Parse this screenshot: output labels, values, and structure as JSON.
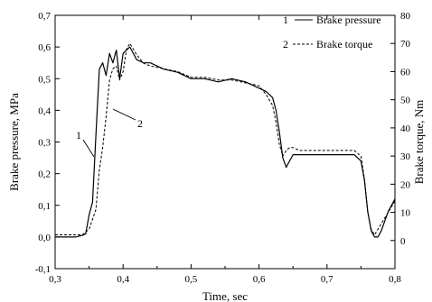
{
  "chart_data": {
    "type": "line",
    "title": "",
    "xlabel": "Time, sec",
    "ylabel": "Brake pressure, MPa",
    "y2label": "Brake torque, Nm",
    "xlim": [
      0.3,
      0.8
    ],
    "ylim": [
      -0.1,
      0.7
    ],
    "y2lim": [
      -10,
      80
    ],
    "x_ticks": [
      0.3,
      0.4,
      0.5,
      0.6,
      0.7,
      0.8
    ],
    "x_tick_labels": [
      "0,3",
      "0,4",
      "0,5",
      "0,6",
      "0,7",
      "0,8"
    ],
    "y_ticks": [
      -0.1,
      0.0,
      0.1,
      0.2,
      0.3,
      0.4,
      0.5,
      0.6,
      0.7
    ],
    "y_tick_labels": [
      "-0,1",
      "0,0",
      "0,1",
      "0,2",
      "0,3",
      "0,4",
      "0,5",
      "0,6",
      "0,7"
    ],
    "y2_ticks": [
      0,
      10,
      20,
      30,
      40,
      50,
      60,
      70,
      80
    ],
    "y2_tick_labels": [
      "0",
      "10",
      "20",
      "30",
      "40",
      "50",
      "60",
      "70",
      "80"
    ],
    "grid": false,
    "legend_position": "top-right",
    "legend": [
      {
        "number": "1",
        "label": "Brake pressure",
        "style": "solid"
      },
      {
        "number": "2",
        "label": "Brake torque",
        "style": "dashed"
      }
    ],
    "annotations": [
      {
        "text": "1",
        "series": "Brake pressure"
      },
      {
        "text": "2",
        "series": "Brake torque"
      }
    ],
    "series": [
      {
        "name": "Brake pressure",
        "axis": "left",
        "x": [
          0.3,
          0.31,
          0.32,
          0.33,
          0.34,
          0.345,
          0.35,
          0.355,
          0.36,
          0.365,
          0.37,
          0.375,
          0.38,
          0.385,
          0.39,
          0.395,
          0.4,
          0.405,
          0.41,
          0.415,
          0.42,
          0.43,
          0.44,
          0.46,
          0.48,
          0.5,
          0.52,
          0.54,
          0.56,
          0.58,
          0.6,
          0.61,
          0.615,
          0.62,
          0.625,
          0.63,
          0.635,
          0.64,
          0.645,
          0.65,
          0.66,
          0.68,
          0.7,
          0.72,
          0.74,
          0.75,
          0.755,
          0.76,
          0.765,
          0.77,
          0.775,
          0.78,
          0.785,
          0.79,
          0.795,
          0.8
        ],
        "y": [
          0.0,
          0.0,
          0.0,
          0.0,
          0.005,
          0.01,
          0.07,
          0.11,
          0.32,
          0.53,
          0.55,
          0.51,
          0.58,
          0.55,
          0.59,
          0.5,
          0.58,
          0.59,
          0.6,
          0.58,
          0.56,
          0.55,
          0.55,
          0.53,
          0.52,
          0.5,
          0.5,
          0.49,
          0.5,
          0.49,
          0.47,
          0.46,
          0.45,
          0.44,
          0.4,
          0.33,
          0.25,
          0.22,
          0.24,
          0.26,
          0.26,
          0.26,
          0.26,
          0.26,
          0.26,
          0.24,
          0.18,
          0.08,
          0.02,
          0.0,
          0.0,
          0.02,
          0.05,
          0.08,
          0.1,
          0.12
        ]
      },
      {
        "name": "Brake torque",
        "axis": "right",
        "x": [
          0.3,
          0.31,
          0.32,
          0.33,
          0.34,
          0.35,
          0.36,
          0.365,
          0.37,
          0.375,
          0.38,
          0.385,
          0.39,
          0.395,
          0.4,
          0.405,
          0.41,
          0.415,
          0.42,
          0.43,
          0.44,
          0.46,
          0.48,
          0.5,
          0.52,
          0.54,
          0.56,
          0.58,
          0.6,
          0.61,
          0.615,
          0.62,
          0.625,
          0.63,
          0.635,
          0.64,
          0.645,
          0.65,
          0.66,
          0.68,
          0.7,
          0.72,
          0.74,
          0.75,
          0.755,
          0.76,
          0.765,
          0.77,
          0.775,
          0.78,
          0.785,
          0.79,
          0.795,
          0.8
        ],
        "y": [
          2,
          2,
          2,
          2,
          2,
          4,
          11,
          25,
          33,
          44,
          57,
          61,
          62,
          57,
          60,
          68,
          70,
          68,
          66,
          63,
          62,
          61,
          60,
          58,
          58,
          57,
          57,
          56,
          55,
          52,
          50,
          48,
          42,
          34,
          30,
          32,
          33,
          33,
          32,
          32,
          32,
          32,
          32,
          30,
          22,
          10,
          4,
          2,
          4,
          6,
          8,
          10,
          12,
          14
        ]
      }
    ]
  }
}
